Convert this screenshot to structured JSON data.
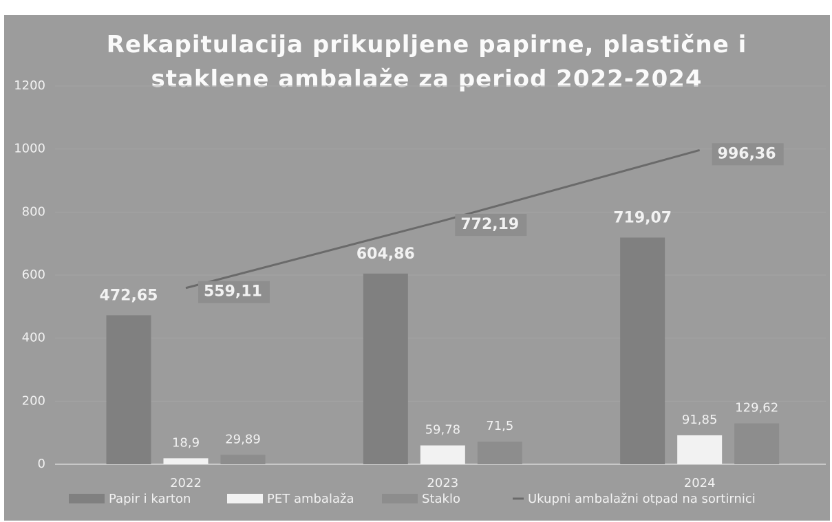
{
  "chart_data": {
    "type": "bar",
    "title": "Rekapitulacija prikupljene papirne, plastične i staklene ambalaže za period 2022-2024",
    "categories": [
      "2022",
      "2023",
      "2024"
    ],
    "series": [
      {
        "name": "Papir i karton",
        "color": "#808080",
        "values": [
          472.65,
          604.86,
          719.07
        ],
        "value_labels": [
          "472,65",
          "604,86",
          "719,07"
        ]
      },
      {
        "name": "PET ambalaža",
        "color": "#f2f2f2",
        "values": [
          18.9,
          59.78,
          91.85
        ],
        "value_labels": [
          "18,9",
          "59,78",
          "91,85"
        ]
      },
      {
        "name": "Staklo",
        "color": "#8d8d8d",
        "values": [
          29.89,
          71.5,
          129.62
        ],
        "value_labels": [
          "29,89",
          "71,5",
          "129,62"
        ]
      },
      {
        "name": "Ukupni ambalažni otpad na sortirnici",
        "type": "line",
        "color": "#6a6a6a",
        "values": [
          559.11,
          772.19,
          996.36
        ],
        "value_labels": [
          "559,11",
          "772,19",
          "996,36"
        ]
      }
    ],
    "ylim": [
      0,
      1200
    ],
    "yticks": [
      0,
      200,
      400,
      600,
      800,
      1000,
      1200
    ],
    "grid": true,
    "legend": "bottom"
  }
}
